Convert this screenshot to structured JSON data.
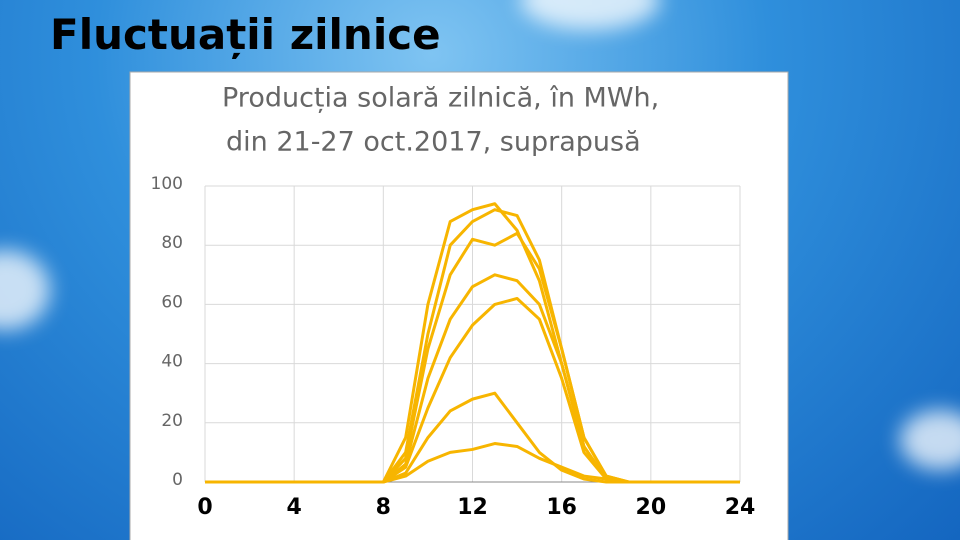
{
  "slide": {
    "title": "Fluctuații zilnice"
  },
  "chart_data": {
    "type": "line",
    "title": [
      "Producția solară zilnică, în MWh,",
      "din 21-27 oct.2017, suprapusă"
    ],
    "x": [
      0,
      1,
      2,
      3,
      4,
      5,
      6,
      7,
      8,
      9,
      10,
      11,
      12,
      13,
      14,
      15,
      16,
      17,
      18,
      19,
      20,
      21,
      22,
      23,
      24
    ],
    "series": [
      {
        "color": "#f7b500",
        "values": [
          0,
          0,
          0,
          0,
          0,
          0,
          0,
          0,
          0,
          15,
          60,
          88,
          92,
          94,
          85,
          68,
          40,
          12,
          1,
          0,
          0,
          0,
          0,
          0,
          0
        ]
      },
      {
        "color": "#f7b500",
        "values": [
          0,
          0,
          0,
          0,
          0,
          0,
          0,
          0,
          0,
          10,
          50,
          80,
          88,
          92,
          90,
          75,
          45,
          15,
          2,
          0,
          0,
          0,
          0,
          0,
          0
        ]
      },
      {
        "color": "#f7b500",
        "values": [
          0,
          0,
          0,
          0,
          0,
          0,
          0,
          0,
          0,
          8,
          45,
          70,
          82,
          80,
          84,
          72,
          45,
          15,
          2,
          0,
          0,
          0,
          0,
          0,
          0
        ]
      },
      {
        "color": "#f7b500",
        "values": [
          0,
          0,
          0,
          0,
          0,
          0,
          0,
          0,
          0,
          6,
          35,
          55,
          66,
          70,
          68,
          60,
          40,
          12,
          1,
          0,
          0,
          0,
          0,
          0,
          0
        ]
      },
      {
        "color": "#f7b500",
        "values": [
          0,
          0,
          0,
          0,
          0,
          0,
          0,
          0,
          0,
          5,
          25,
          42,
          53,
          60,
          62,
          55,
          35,
          10,
          1,
          0,
          0,
          0,
          0,
          0,
          0
        ]
      },
      {
        "color": "#f7b500",
        "values": [
          0,
          0,
          0,
          0,
          0,
          0,
          0,
          0,
          0,
          3,
          15,
          24,
          28,
          30,
          20,
          10,
          4,
          1,
          0,
          0,
          0,
          0,
          0,
          0,
          0
        ]
      },
      {
        "color": "#f7b500",
        "values": [
          0,
          0,
          0,
          0,
          0,
          0,
          0,
          0,
          0,
          2,
          7,
          10,
          11,
          13,
          12,
          8,
          5,
          2,
          1,
          0,
          0,
          0,
          0,
          0,
          0
        ]
      }
    ],
    "xlim": [
      0,
      24
    ],
    "xticks": [
      0,
      4,
      8,
      12,
      16,
      20,
      24
    ],
    "ylim": [
      0,
      100
    ],
    "yticks": [
      0,
      20,
      40,
      60,
      80,
      100
    ],
    "grid": true
  }
}
